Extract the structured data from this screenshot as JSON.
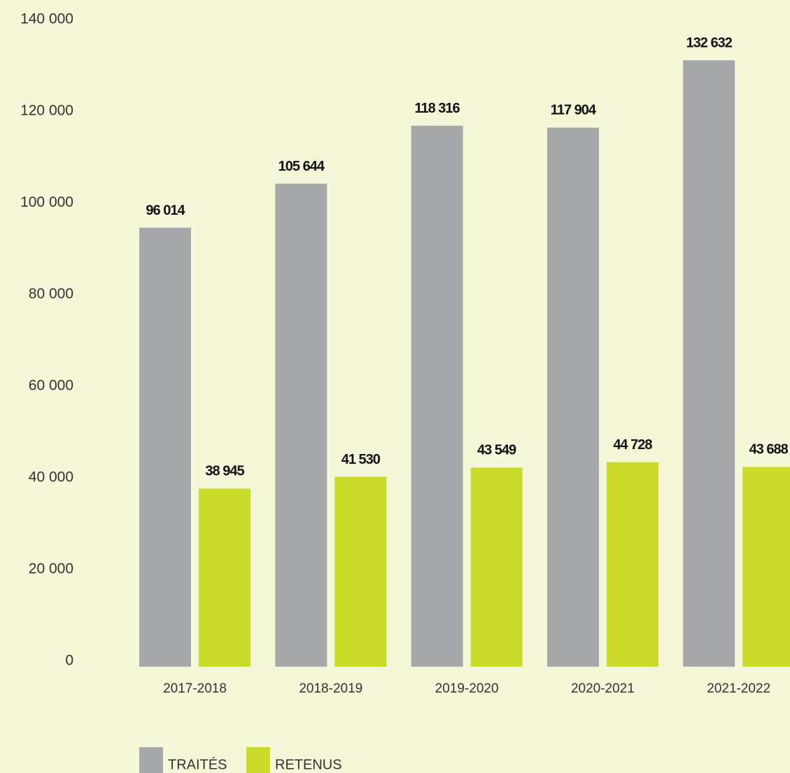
{
  "chart_data": {
    "type": "bar",
    "categories": [
      "2017-2018",
      "2018-2019",
      "2019-2020",
      "2020-2021",
      "2021-2022"
    ],
    "series": [
      {
        "name": "TRAITÉS",
        "color": "#a7a8aa",
        "values": [
          96014,
          105644,
          118316,
          117904,
          132632
        ],
        "value_labels": [
          "96 014",
          "105 644",
          "118 316",
          "117 904",
          "132 632"
        ]
      },
      {
        "name": "RETENUS",
        "color": "#cadb2a",
        "values": [
          38945,
          41530,
          43549,
          44728,
          43688
        ],
        "value_labels": [
          "38 945",
          "41 530",
          "43 549",
          "44 728",
          "43 688"
        ]
      }
    ],
    "ylim": [
      0,
      140000
    ],
    "yticks": [
      0,
      {
        "value": 20000,
        "label": "20 000"
      },
      {
        "value": 40000,
        "label": "40 000"
      },
      {
        "value": 60000,
        "label": "60 000"
      },
      {
        "value": 80000,
        "label": "80 000"
      },
      {
        "value": 100000,
        "label": "100 000"
      },
      {
        "value": 120000,
        "label": "120 000"
      },
      {
        "value": 140000,
        "label": "140 000"
      }
    ],
    "grid": false,
    "legend": "bottom"
  }
}
